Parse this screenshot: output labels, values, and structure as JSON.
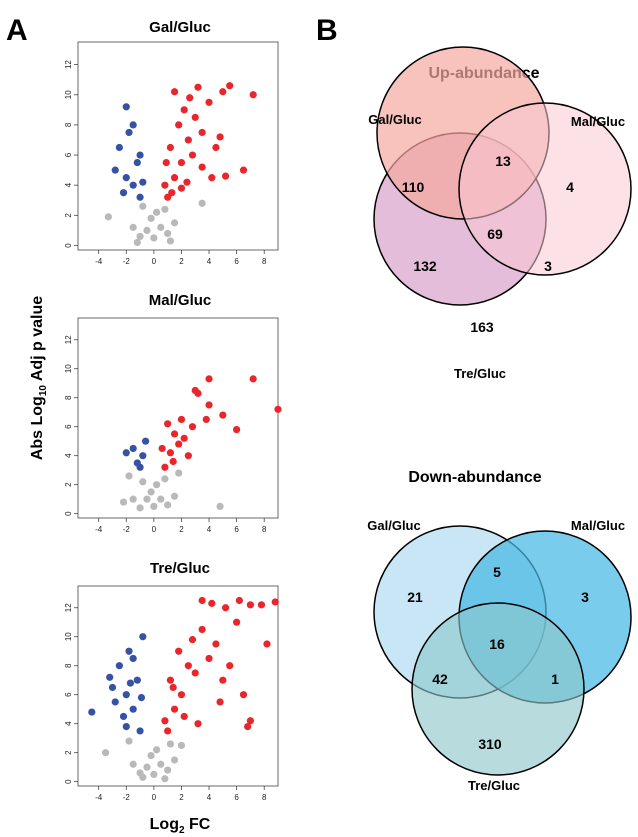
{
  "panels": {
    "a": "A",
    "b": "B"
  },
  "volcano": {
    "ylabel": {
      "pre": "Abs Log",
      "sub": "10",
      "post": " Adj p value"
    },
    "xlabel": {
      "pre": "Log",
      "sub": "2",
      "post": " FC"
    },
    "x_ticks": [
      -4,
      -2,
      0,
      2,
      4,
      6,
      8
    ],
    "y_ticks": [
      0,
      2,
      4,
      6,
      8,
      10,
      12
    ],
    "colors": {
      "up": "#e8262b",
      "down": "#3652a5",
      "ns": "#b9b9b9"
    }
  },
  "chart_data": [
    {
      "type": "scatter",
      "title": "Gal/Gluc",
      "xlim": [
        -5.5,
        9
      ],
      "ylim": [
        -0.3,
        13.5
      ],
      "points": {
        "up": [
          [
            1.0,
            3.2
          ],
          [
            1.5,
            4.5
          ],
          [
            2.0,
            5.5
          ],
          [
            1.2,
            6.5
          ],
          [
            2.5,
            7.0
          ],
          [
            1.8,
            8.0
          ],
          [
            2.2,
            9.0
          ],
          [
            1.5,
            10.2
          ],
          [
            3.0,
            8.5
          ],
          [
            2.8,
            6.0
          ],
          [
            3.5,
            7.5
          ],
          [
            4.0,
            9.5
          ],
          [
            4.5,
            6.5
          ],
          [
            5.0,
            10.2
          ],
          [
            5.5,
            10.6
          ],
          [
            7.2,
            10.0
          ],
          [
            6.5,
            5.0
          ],
          [
            5.2,
            4.6
          ],
          [
            4.2,
            4.5
          ],
          [
            3.5,
            5.2
          ],
          [
            0.8,
            4.0
          ],
          [
            1.3,
            3.5
          ],
          [
            2.6,
            9.8
          ],
          [
            3.2,
            10.5
          ],
          [
            4.8,
            7.2
          ],
          [
            2.0,
            3.8
          ],
          [
            0.9,
            5.5
          ],
          [
            2.4,
            4.2
          ]
        ],
        "down": [
          [
            -1.0,
            3.2
          ],
          [
            -1.5,
            4.0
          ],
          [
            -2.0,
            4.5
          ],
          [
            -1.2,
            5.5
          ],
          [
            -2.5,
            6.5
          ],
          [
            -1.8,
            7.5
          ],
          [
            -2.0,
            9.2
          ],
          [
            -1.5,
            8.0
          ],
          [
            -2.8,
            5.0
          ],
          [
            -2.2,
            3.5
          ],
          [
            -0.8,
            4.2
          ],
          [
            -1.0,
            6.0
          ]
        ],
        "ns": [
          [
            0,
            0.5
          ],
          [
            -0.5,
            1.0
          ],
          [
            0.5,
            1.2
          ],
          [
            1.0,
            0.8
          ],
          [
            -1.0,
            0.6
          ],
          [
            0.2,
            2.2
          ],
          [
            -0.2,
            1.8
          ],
          [
            1.5,
            1.5
          ],
          [
            -1.5,
            1.2
          ],
          [
            -3.3,
            1.9
          ],
          [
            3.5,
            2.8
          ],
          [
            -0.8,
            2.6
          ],
          [
            0.8,
            2.4
          ],
          [
            1.2,
            0.3
          ],
          [
            -1.2,
            0.2
          ]
        ]
      }
    },
    {
      "type": "scatter",
      "title": "Mal/Gluc",
      "xlim": [
        -5.5,
        9
      ],
      "ylim": [
        -0.3,
        13.5
      ],
      "points": {
        "up": [
          [
            0.8,
            3.2
          ],
          [
            1.2,
            4.2
          ],
          [
            1.5,
            5.5
          ],
          [
            1.0,
            6.2
          ],
          [
            2.0,
            6.5
          ],
          [
            1.8,
            4.8
          ],
          [
            2.2,
            5.2
          ],
          [
            3.0,
            8.5
          ],
          [
            3.2,
            8.3
          ],
          [
            4.0,
            9.3
          ],
          [
            4.0,
            7.5
          ],
          [
            3.8,
            6.5
          ],
          [
            5.0,
            6.8
          ],
          [
            6.0,
            5.8
          ],
          [
            7.2,
            9.3
          ],
          [
            9.0,
            7.2
          ],
          [
            2.5,
            4.0
          ],
          [
            1.4,
            3.6
          ],
          [
            0.6,
            4.5
          ],
          [
            2.8,
            6.0
          ]
        ],
        "down": [
          [
            -1.0,
            3.2
          ],
          [
            -1.5,
            4.5
          ],
          [
            -0.8,
            4.0
          ],
          [
            -2.0,
            4.2
          ],
          [
            -1.2,
            3.5
          ],
          [
            -0.6,
            5.0
          ]
        ],
        "ns": [
          [
            0,
            0.5
          ],
          [
            -0.5,
            1.0
          ],
          [
            0.5,
            1.0
          ],
          [
            1.0,
            0.6
          ],
          [
            -1.0,
            0.4
          ],
          [
            0.2,
            2.0
          ],
          [
            -0.2,
            1.5
          ],
          [
            1.5,
            1.2
          ],
          [
            -1.5,
            1.0
          ],
          [
            -1.8,
            2.6
          ],
          [
            -2.2,
            0.8
          ],
          [
            1.8,
            2.8
          ],
          [
            4.8,
            0.5
          ],
          [
            0.8,
            2.4
          ],
          [
            -0.8,
            2.2
          ]
        ]
      }
    },
    {
      "type": "scatter",
      "title": "Tre/Gluc",
      "xlim": [
        -5.5,
        9
      ],
      "ylim": [
        -0.3,
        13.5
      ],
      "points": {
        "up": [
          [
            1.0,
            3.5
          ],
          [
            1.5,
            5.0
          ],
          [
            2.0,
            6.0
          ],
          [
            1.2,
            7.0
          ],
          [
            2.5,
            8.0
          ],
          [
            1.8,
            9.0
          ],
          [
            2.2,
            4.5
          ],
          [
            3.0,
            7.5
          ],
          [
            3.5,
            10.5
          ],
          [
            4.0,
            8.5
          ],
          [
            4.5,
            9.5
          ],
          [
            5.0,
            7.0
          ],
          [
            5.5,
            8.0
          ],
          [
            6.0,
            11.0
          ],
          [
            3.5,
            12.5
          ],
          [
            4.2,
            12.3
          ],
          [
            5.2,
            12.0
          ],
          [
            6.2,
            12.5
          ],
          [
            7.0,
            12.2
          ],
          [
            7.8,
            12.2
          ],
          [
            8.8,
            12.4
          ],
          [
            8.2,
            9.5
          ],
          [
            7.0,
            4.2
          ],
          [
            6.8,
            3.8
          ],
          [
            6.5,
            6.0
          ],
          [
            4.8,
            5.5
          ],
          [
            3.2,
            4.0
          ],
          [
            2.8,
            9.8
          ],
          [
            0.8,
            4.2
          ],
          [
            1.4,
            6.5
          ]
        ],
        "down": [
          [
            -1.0,
            3.5
          ],
          [
            -1.5,
            5.0
          ],
          [
            -2.0,
            6.0
          ],
          [
            -1.2,
            7.0
          ],
          [
            -2.5,
            8.0
          ],
          [
            -1.8,
            9.0
          ],
          [
            -0.8,
            10.0
          ],
          [
            -2.2,
            4.5
          ],
          [
            -3.0,
            6.5
          ],
          [
            -2.8,
            5.5
          ],
          [
            -1.5,
            8.5
          ],
          [
            -4.5,
            4.8
          ],
          [
            -3.2,
            7.2
          ],
          [
            -2.0,
            3.8
          ],
          [
            -0.9,
            5.8
          ],
          [
            -1.7,
            6.8
          ]
        ],
        "ns": [
          [
            0,
            0.5
          ],
          [
            -0.5,
            1.0
          ],
          [
            0.5,
            1.2
          ],
          [
            1.0,
            0.8
          ],
          [
            -1.0,
            0.6
          ],
          [
            0.2,
            2.2
          ],
          [
            -0.2,
            1.8
          ],
          [
            1.5,
            1.5
          ],
          [
            -1.5,
            1.2
          ],
          [
            -3.5,
            2.0
          ],
          [
            2.0,
            2.5
          ],
          [
            -1.8,
            2.8
          ],
          [
            0.8,
            0.2
          ],
          [
            -0.8,
            0.3
          ],
          [
            1.2,
            2.6
          ]
        ]
      }
    },
    {
      "type": "venn",
      "title": "Up-abundance",
      "sets": [
        "Gal/Gluc",
        "Mal/Gluc",
        "Tre/Gluc"
      ],
      "set_colors": [
        "#f4a9a0",
        "#f9c9d2",
        "#d9a7cd"
      ],
      "regions": {
        "gal_only": 110,
        "mal_only": 4,
        "tre_only": 163,
        "gal_mal": 13,
        "mal_tre": 3,
        "gal_tre": 132,
        "all": 69
      }
    },
    {
      "type": "venn",
      "title": "Down-abundance",
      "sets": [
        "Gal/Gluc",
        "Mal/Gluc",
        "Tre/Gluc"
      ],
      "set_colors": [
        "#c8e6f6",
        "#45b9e3",
        "#8cc7ca"
      ],
      "regions": {
        "gal_only": 21,
        "mal_only": 3,
        "tre_only": 310,
        "gal_mal": 5,
        "mal_tre": 1,
        "gal_tre": 42,
        "all": 16
      }
    }
  ]
}
